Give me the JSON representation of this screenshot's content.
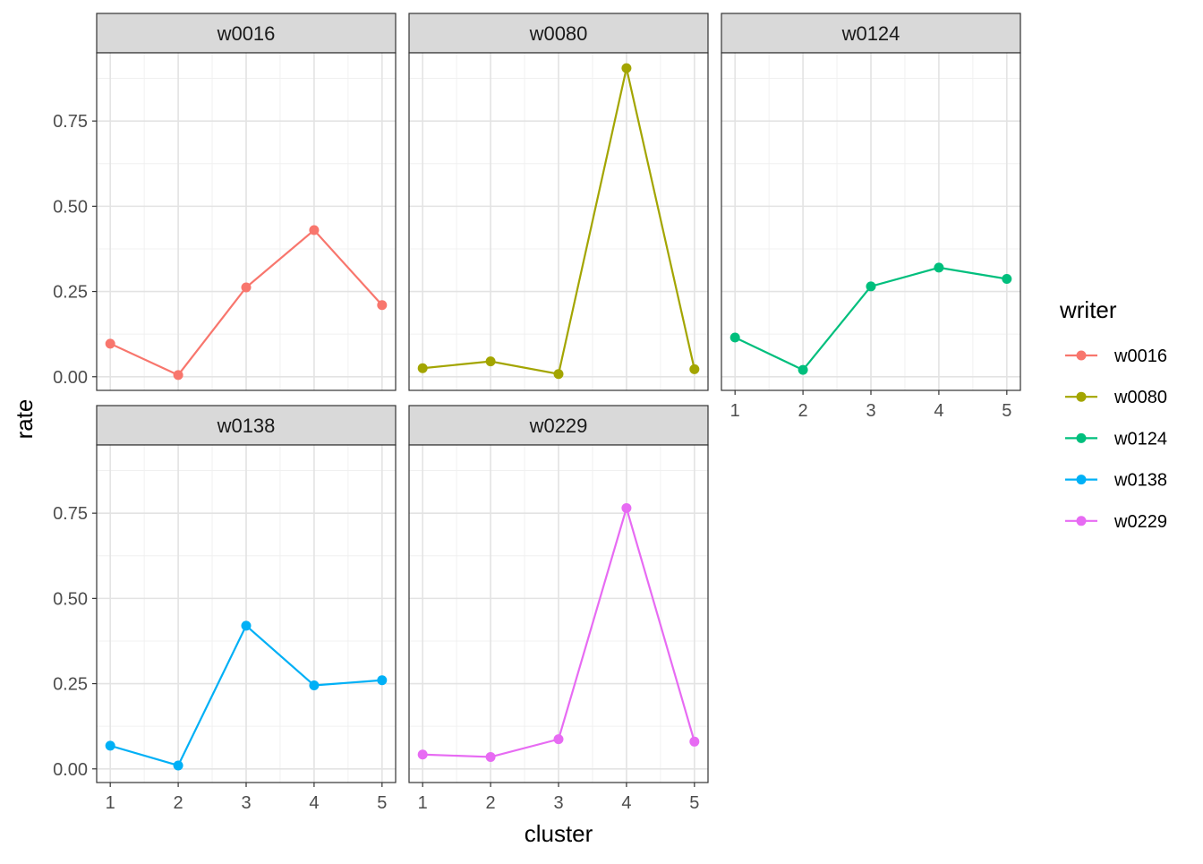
{
  "chart_data": {
    "type": "line",
    "facet_by": "writer",
    "xlabel": "cluster",
    "ylabel": "rate",
    "x": [
      1,
      2,
      3,
      4,
      5
    ],
    "xlim": [
      0.8,
      5.2
    ],
    "ylim": [
      -0.04,
      0.95
    ],
    "x_ticks": [
      "1",
      "2",
      "3",
      "4",
      "5"
    ],
    "y_ticks": [
      "0.00",
      "0.25",
      "0.50",
      "0.75"
    ],
    "grid": true,
    "legend": {
      "title": "writer",
      "position": "right",
      "entries": [
        "w0016",
        "w0080",
        "w0124",
        "w0138",
        "w0229"
      ]
    },
    "series": [
      {
        "name": "w0016",
        "color": "#F8766D",
        "values": [
          0.097,
          0.005,
          0.262,
          0.43,
          0.21
        ]
      },
      {
        "name": "w0080",
        "color": "#A3A500",
        "values": [
          0.025,
          0.045,
          0.008,
          0.905,
          0.022
        ]
      },
      {
        "name": "w0124",
        "color": "#00BF7D",
        "values": [
          0.115,
          0.02,
          0.265,
          0.32,
          0.287
        ]
      },
      {
        "name": "w0138",
        "color": "#00B0F6",
        "values": [
          0.068,
          0.01,
          0.42,
          0.245,
          0.26
        ]
      },
      {
        "name": "w0229",
        "color": "#E76BF3",
        "values": [
          0.042,
          0.035,
          0.087,
          0.765,
          0.08
        ]
      }
    ]
  }
}
